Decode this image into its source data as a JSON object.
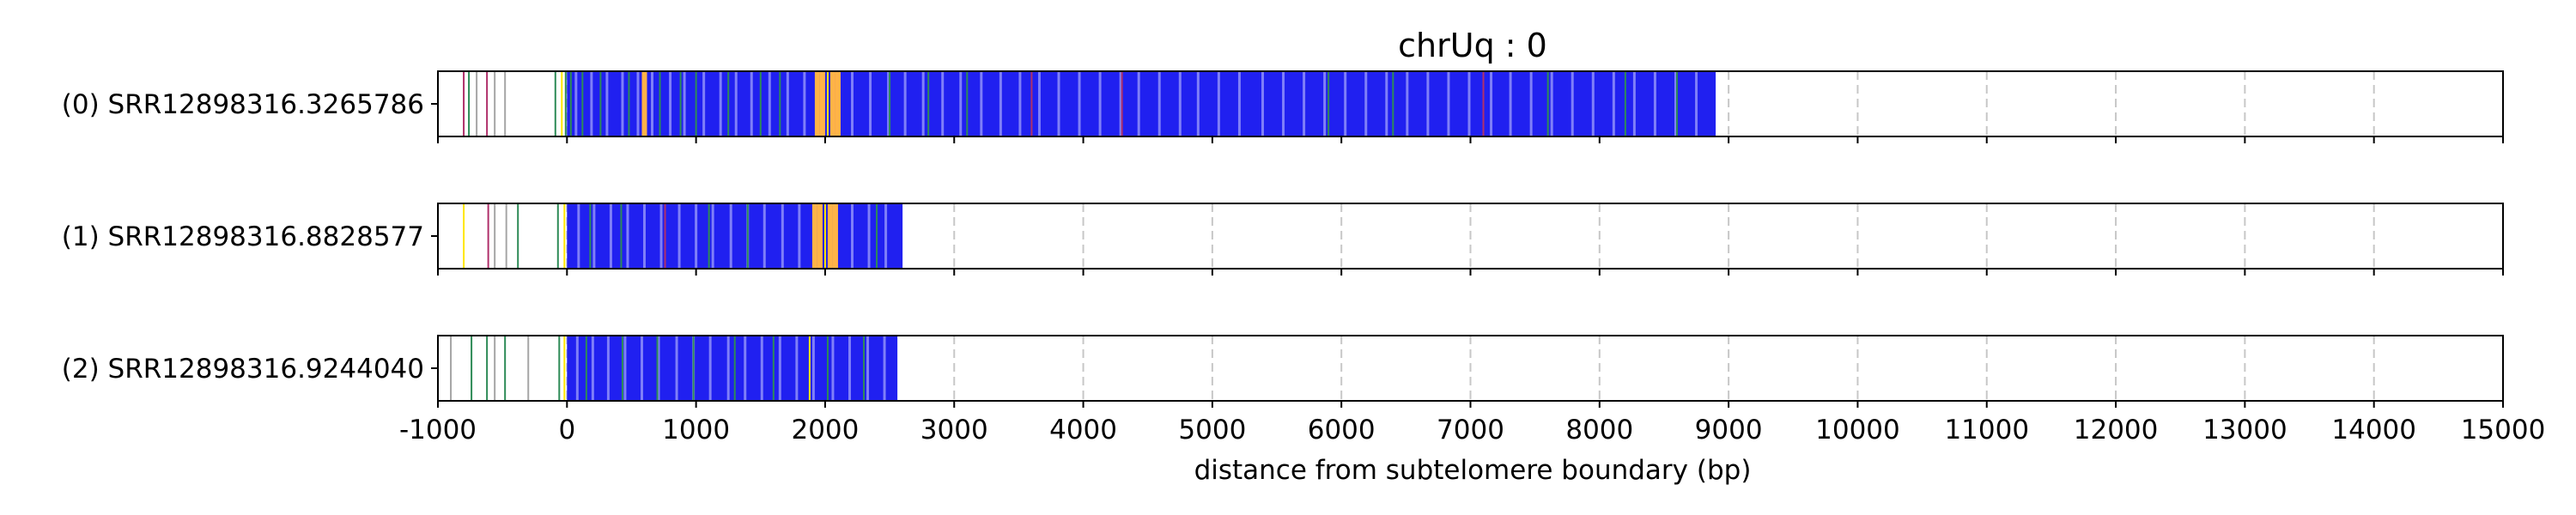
{
  "chart_data": {
    "type": "track",
    "title": "chrUq : 0",
    "xlabel": "distance from subtelomere boundary (bp)",
    "xlim": [
      -1000,
      15000
    ],
    "x_ticks": [
      -1000,
      0,
      1000,
      2000,
      3000,
      4000,
      5000,
      6000,
      7000,
      8000,
      9000,
      10000,
      11000,
      12000,
      13000,
      14000,
      15000
    ],
    "grid": "vertical dashed",
    "series_colors": {
      "blue": "#2020f0",
      "light_blue": "#8a8af8",
      "green": "#2e8b57",
      "orange": "#ffb347",
      "yellow": "#ffe600",
      "magenta": "#b0306a",
      "gray": "#909090"
    },
    "reads": [
      {
        "label": "(0) SRR12898316.3265786",
        "blue_region": [
          0,
          8900
        ],
        "light_gaps": [
          60,
          180,
          300,
          420,
          540,
          650,
          790,
          900,
          1050,
          1180,
          1300,
          1420,
          1560,
          1700,
          1830,
          2200,
          2340,
          2480,
          2610,
          2750,
          2900,
          3040,
          3200,
          3350,
          3500,
          3650,
          3800,
          3960,
          4120,
          4280,
          4420,
          4580,
          4740,
          4880,
          5040,
          5200,
          5380,
          5540,
          5700,
          5860,
          6020,
          6180,
          6340,
          6500,
          6660,
          6820,
          6980,
          7150,
          7300,
          7460,
          7620,
          7780,
          7940,
          8100,
          8260,
          8420,
          8580,
          8740
        ],
        "marks": [
          {
            "x": -800,
            "color": "magenta"
          },
          {
            "x": -760,
            "color": "green"
          },
          {
            "x": -700,
            "color": "gray"
          },
          {
            "x": -620,
            "color": "magenta"
          },
          {
            "x": -560,
            "color": "gray"
          },
          {
            "x": -480,
            "color": "gray"
          },
          {
            "x": -90,
            "color": "green"
          },
          {
            "x": -40,
            "color": "yellow"
          },
          {
            "x": -10,
            "color": "green"
          },
          {
            "x": 30,
            "color": "green"
          },
          {
            "x": 120,
            "color": "green"
          },
          {
            "x": 260,
            "color": "green"
          },
          {
            "x": 480,
            "color": "green"
          },
          {
            "x": 600,
            "color": "orange"
          },
          {
            "x": 720,
            "color": "green"
          },
          {
            "x": 880,
            "color": "green"
          },
          {
            "x": 1000,
            "color": "green"
          },
          {
            "x": 1250,
            "color": "green"
          },
          {
            "x": 1500,
            "color": "green"
          },
          {
            "x": 1650,
            "color": "green"
          },
          {
            "x": 1940,
            "color": "orange"
          },
          {
            "x": 1980,
            "color": "orange"
          },
          {
            "x": 2020,
            "color": "yellow"
          },
          {
            "x": 2060,
            "color": "orange"
          },
          {
            "x": 2100,
            "color": "orange"
          },
          {
            "x": 2500,
            "color": "green"
          },
          {
            "x": 2800,
            "color": "green"
          },
          {
            "x": 3100,
            "color": "green"
          },
          {
            "x": 3600,
            "color": "magenta"
          },
          {
            "x": 4300,
            "color": "magenta"
          },
          {
            "x": 5900,
            "color": "green"
          },
          {
            "x": 6400,
            "color": "green"
          },
          {
            "x": 7100,
            "color": "magenta"
          },
          {
            "x": 7600,
            "color": "green"
          },
          {
            "x": 8200,
            "color": "green"
          },
          {
            "x": 8600,
            "color": "green"
          }
        ]
      },
      {
        "label": "(1) SRR12898316.8828577",
        "blue_region": [
          0,
          2600
        ],
        "light_gaps": [
          80,
          200,
          330,
          460,
          590,
          720,
          860,
          990,
          1120,
          1260,
          1390,
          1520,
          1660,
          1790,
          2200,
          2330,
          2460
        ],
        "marks": [
          {
            "x": -800,
            "color": "yellow"
          },
          {
            "x": -610,
            "color": "magenta"
          },
          {
            "x": -560,
            "color": "gray"
          },
          {
            "x": -470,
            "color": "gray"
          },
          {
            "x": -380,
            "color": "green"
          },
          {
            "x": -70,
            "color": "green"
          },
          {
            "x": -20,
            "color": "yellow"
          },
          {
            "x": 180,
            "color": "green"
          },
          {
            "x": 420,
            "color": "green"
          },
          {
            "x": 760,
            "color": "magenta"
          },
          {
            "x": 1100,
            "color": "green"
          },
          {
            "x": 1400,
            "color": "green"
          },
          {
            "x": 1920,
            "color": "orange"
          },
          {
            "x": 1960,
            "color": "orange"
          },
          {
            "x": 2000,
            "color": "yellow"
          },
          {
            "x": 2040,
            "color": "orange"
          },
          {
            "x": 2080,
            "color": "orange"
          },
          {
            "x": 2400,
            "color": "green"
          }
        ]
      },
      {
        "label": "(2) SRR12898316.9244040",
        "blue_region": [
          0,
          2560
        ],
        "light_gaps": [
          70,
          190,
          310,
          440,
          570,
          700,
          840,
          970,
          1100,
          1240,
          1370,
          1500,
          1640,
          1770,
          1900,
          2050,
          2180,
          2320,
          2450
        ],
        "marks": [
          {
            "x": -900,
            "color": "gray"
          },
          {
            "x": -740,
            "color": "green"
          },
          {
            "x": -620,
            "color": "green"
          },
          {
            "x": -560,
            "color": "gray"
          },
          {
            "x": -480,
            "color": "green"
          },
          {
            "x": -300,
            "color": "gray"
          },
          {
            "x": -60,
            "color": "green"
          },
          {
            "x": -20,
            "color": "yellow"
          },
          {
            "x": 150,
            "color": "green"
          },
          {
            "x": 430,
            "color": "green"
          },
          {
            "x": 700,
            "color": "green"
          },
          {
            "x": 980,
            "color": "green"
          },
          {
            "x": 1300,
            "color": "green"
          },
          {
            "x": 1600,
            "color": "green"
          },
          {
            "x": 1880,
            "color": "yellow"
          },
          {
            "x": 2020,
            "color": "green"
          },
          {
            "x": 2300,
            "color": "green"
          }
        ]
      }
    ]
  }
}
